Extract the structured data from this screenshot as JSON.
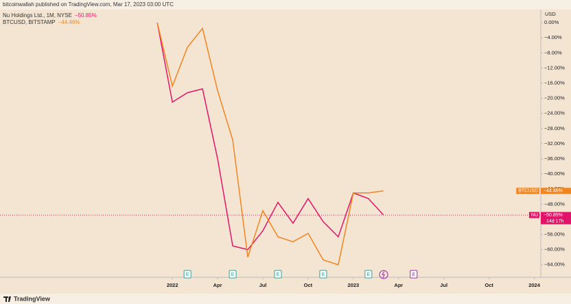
{
  "chart_data": {
    "type": "line",
    "header": "bitcoinwallah published on TradingView.com, Mar 17, 2023 03:00 UTC",
    "footer": "TradingView",
    "y_axis_label": "USD",
    "x": [
      -1,
      0,
      1,
      2,
      3,
      4,
      5,
      6,
      7,
      8,
      9,
      10,
      11,
      12,
      13,
      14
    ],
    "series": [
      {
        "name": "Nu Holdings Ltd., 1M, NYSE",
        "symbol": "NU",
        "color": "#e0156a",
        "last_value_label": "−50.85%",
        "countdown": "14d 17h",
        "values": [
          0,
          -21,
          -18.5,
          -17.5,
          -36,
          -59,
          -60,
          -55,
          -47.5,
          -53,
          -46.5,
          -52.6,
          -56.6,
          -45,
          -46.5,
          -50.85
        ]
      },
      {
        "name": "BTCUSD, BITSTAMP",
        "symbol": "BTCUSD",
        "color": "#f0841f",
        "last_value_label": "−44.46%",
        "values": [
          0,
          -16.8,
          -6.5,
          -1.5,
          -18,
          -31,
          -62,
          -49.7,
          -56.6,
          -57.9,
          -55.7,
          -62.7,
          -64,
          -45,
          -45,
          -44.46
        ]
      }
    ],
    "events": [
      {
        "x": 1,
        "label": "E"
      },
      {
        "x": 4,
        "label": "E"
      },
      {
        "x": 7,
        "label": "E"
      },
      {
        "x": 10,
        "label": "E"
      },
      {
        "x": 13,
        "label": "E"
      },
      {
        "x": 16,
        "label": "E"
      }
    ],
    "xlim": [
      -11.43,
      24.43
    ],
    "xticks": [
      {
        "value": 0,
        "label": "2022"
      },
      {
        "value": 3,
        "label": "Apr"
      },
      {
        "value": 6,
        "label": "Jul"
      },
      {
        "value": 9,
        "label": "Oct"
      },
      {
        "value": 12,
        "label": "2023"
      },
      {
        "value": 15,
        "label": "Apr"
      },
      {
        "value": 18,
        "label": "Jul"
      },
      {
        "value": 21,
        "label": "Oct"
      },
      {
        "value": 24,
        "label": "2024"
      }
    ],
    "ylim": [
      -66.4,
      3.1
    ],
    "yticks": [
      {
        "value": 0,
        "label": "0.00%"
      },
      {
        "value": -4,
        "label": "−4.00%"
      },
      {
        "value": -8,
        "label": "−8.00%"
      },
      {
        "value": -12,
        "label": "−12.00%"
      },
      {
        "value": -16,
        "label": "−16.00%"
      },
      {
        "value": -20,
        "label": "−20.00%"
      },
      {
        "value": -24,
        "label": "−24.00%"
      },
      {
        "value": -28,
        "label": "−28.00%"
      },
      {
        "value": -32,
        "label": "−32.00%"
      },
      {
        "value": -36,
        "label": "−36.00%"
      },
      {
        "value": -40,
        "label": "−40.00%"
      },
      {
        "value": -44,
        "label": "−44.00%"
      },
      {
        "value": -48,
        "label": "−48.00%"
      },
      {
        "value": -52,
        "label": "−52.00%"
      },
      {
        "value": -56,
        "label": "−56.00%"
      },
      {
        "value": -60,
        "label": "−60.00%"
      },
      {
        "value": -64,
        "label": "−64.00%"
      }
    ],
    "grid": false
  }
}
